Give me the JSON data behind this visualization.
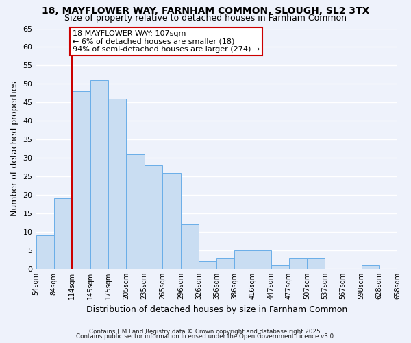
{
  "title1": "18, MAYFLOWER WAY, FARNHAM COMMON, SLOUGH, SL2 3TX",
  "title2": "Size of property relative to detached houses in Farnham Common",
  "xlabel": "Distribution of detached houses by size in Farnham Common",
  "ylabel": "Number of detached properties",
  "bar_color": "#c9ddf2",
  "bar_edge_color": "#6aaee8",
  "bins": [
    54,
    84,
    114,
    145,
    175,
    205,
    235,
    265,
    296,
    326,
    356,
    386,
    416,
    447,
    477,
    507,
    537,
    567,
    598,
    628,
    658
  ],
  "counts": [
    9,
    19,
    48,
    51,
    46,
    31,
    28,
    26,
    12,
    2,
    3,
    5,
    5,
    1,
    3,
    3,
    0,
    0,
    1,
    0
  ],
  "xlabels": [
    "54sqm",
    "84sqm",
    "114sqm",
    "145sqm",
    "175sqm",
    "205sqm",
    "235sqm",
    "265sqm",
    "296sqm",
    "326sqm",
    "356sqm",
    "386sqm",
    "416sqm",
    "447sqm",
    "477sqm",
    "507sqm",
    "537sqm",
    "567sqm",
    "598sqm",
    "628sqm",
    "658sqm"
  ],
  "ylim": [
    0,
    65
  ],
  "yticks": [
    0,
    5,
    10,
    15,
    20,
    25,
    30,
    35,
    40,
    45,
    50,
    55,
    60,
    65
  ],
  "vline_x": 114,
  "vline_color": "#cc0000",
  "annotation_title": "18 MAYFLOWER WAY: 107sqm",
  "annotation_line1": "← 6% of detached houses are smaller (18)",
  "annotation_line2": "94% of semi-detached houses are larger (274) →",
  "annotation_box_color": "#ffffff",
  "annotation_box_edge": "#cc0000",
  "footer1": "Contains HM Land Registry data © Crown copyright and database right 2025.",
  "footer2": "Contains public sector information licensed under the Open Government Licence v3.0.",
  "background_color": "#eef2fb",
  "grid_color": "#ffffff"
}
